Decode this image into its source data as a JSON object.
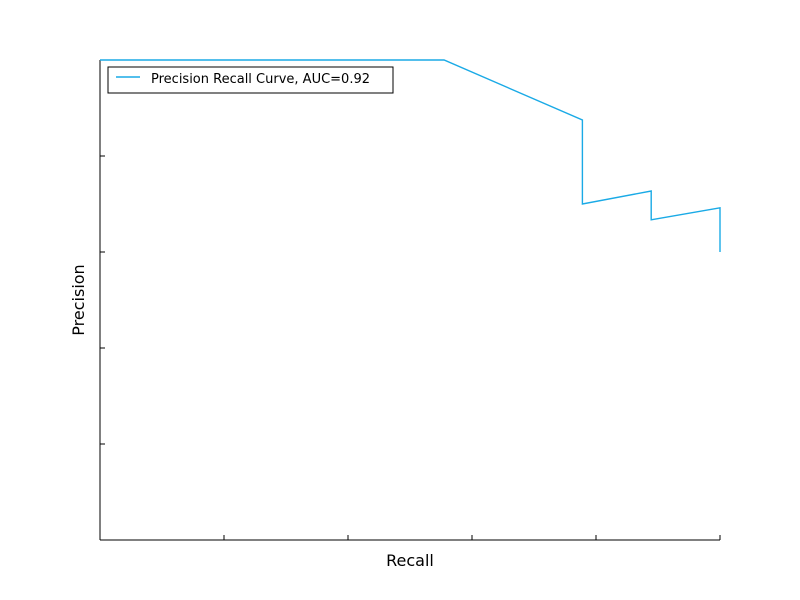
{
  "chart_data": {
    "type": "line",
    "xlabel": "Recall",
    "ylabel": "Precision",
    "xlim": [
      0,
      1
    ],
    "ylim": [
      0,
      1
    ],
    "xticks": [
      0,
      0.2,
      0.4,
      0.6,
      0.8,
      1.0
    ],
    "yticks": [
      0,
      0.2,
      0.4,
      0.6,
      0.8,
      1.0
    ],
    "tick_labels_visible": false,
    "grid": false,
    "legend_position": "top-left",
    "series": [
      {
        "name": "Precision Recall Curve, AUC=0.92",
        "color": "#1aaae6",
        "x": [
          0.0,
          0.555,
          0.778,
          0.778,
          0.889,
          0.889,
          1.0,
          1.0
        ],
        "y": [
          1.0,
          1.0,
          0.875,
          0.7,
          0.727,
          0.667,
          0.692,
          0.6
        ]
      }
    ]
  }
}
